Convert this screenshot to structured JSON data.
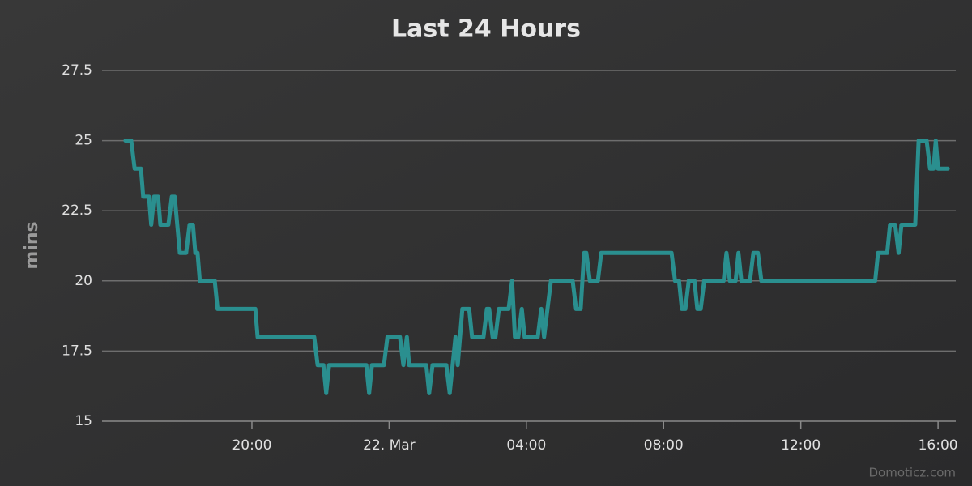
{
  "chart_data": {
    "type": "line",
    "title": "Last 24 Hours",
    "ylabel": "mins",
    "credit": "Domoticz.com",
    "x": [
      "21. Mar 16:19",
      "21. Mar 16:29",
      "21. Mar 16:35",
      "21. Mar 16:46",
      "21. Mar 16:50",
      "21. Mar 17:00",
      "21. Mar 17:04",
      "21. Mar 17:09",
      "21. Mar 17:16",
      "21. Mar 17:20",
      "21. Mar 17:34",
      "21. Mar 17:40",
      "21. Mar 17:45",
      "21. Mar 17:54",
      "21. Mar 18:05",
      "21. Mar 18:11",
      "21. Mar 18:17",
      "21. Mar 18:21",
      "21. Mar 18:25",
      "21. Mar 18:29",
      "21. Mar 18:55",
      "21. Mar 19:00",
      "21. Mar 20:06",
      "21. Mar 20:10",
      "21. Mar 21:49",
      "21. Mar 21:55",
      "21. Mar 22:05",
      "21. Mar 22:10",
      "21. Mar 22:15",
      "21. Mar 23:20",
      "21. Mar 23:25",
      "21. Mar 23:30",
      "21. Mar 23:51",
      "21. Mar 23:57",
      "22. Mar 00:19",
      "22. Mar 00:25",
      "22. Mar 00:31",
      "22. Mar 00:35",
      "22. Mar 01:05",
      "22. Mar 01:10",
      "22. Mar 01:16",
      "22. Mar 01:40",
      "22. Mar 01:46",
      "22. Mar 01:51",
      "22. Mar 01:56",
      "22. Mar 02:00",
      "22. Mar 02:08",
      "22. Mar 02:20",
      "22. Mar 02:25",
      "22. Mar 02:45",
      "22. Mar 02:51",
      "22. Mar 02:55",
      "22. Mar 03:01",
      "22. Mar 03:06",
      "22. Mar 03:12",
      "22. Mar 03:29",
      "22. Mar 03:35",
      "22. Mar 03:40",
      "22. Mar 03:46",
      "22. Mar 03:52",
      "22. Mar 03:57",
      "22. Mar 04:20",
      "22. Mar 04:26",
      "22. Mar 04:31",
      "22. Mar 04:37",
      "22. Mar 04:43",
      "22. Mar 05:21",
      "22. Mar 05:27",
      "22. Mar 05:35",
      "22. Mar 05:41",
      "22. Mar 05:45",
      "22. Mar 05:51",
      "22. Mar 06:05",
      "22. Mar 06:11",
      "22. Mar 08:14",
      "22. Mar 08:20",
      "22. Mar 08:27",
      "22. Mar 08:32",
      "22. Mar 08:38",
      "22. Mar 08:44",
      "22. Mar 08:54",
      "22. Mar 08:59",
      "22. Mar 09:05",
      "22. Mar 09:11",
      "22. Mar 09:45",
      "22. Mar 09:50",
      "22. Mar 09:56",
      "22. Mar 10:06",
      "22. Mar 10:11",
      "22. Mar 10:16",
      "22. Mar 10:31",
      "22. Mar 10:37",
      "22. Mar 10:45",
      "22. Mar 10:51",
      "22. Mar 14:10",
      "22. Mar 14:15",
      "22. Mar 14:31",
      "22. Mar 14:36",
      "22. Mar 14:45",
      "22. Mar 14:51",
      "22. Mar 14:56",
      "22. Mar 15:20",
      "22. Mar 15:26",
      "22. Mar 15:40",
      "22. Mar 15:46",
      "22. Mar 15:52",
      "22. Mar 15:56",
      "22. Mar 16:00",
      "22. Mar 16:17"
    ],
    "series": [
      {
        "name": "mins",
        "color": "#2a8f8f",
        "values": [
          25,
          25,
          24,
          24,
          23,
          23,
          22,
          23,
          23,
          22,
          22,
          23,
          23,
          21,
          21,
          22,
          22,
          21,
          21,
          20,
          20,
          19,
          19,
          18,
          18,
          17,
          17,
          16,
          17,
          17,
          16,
          17,
          17,
          18,
          18,
          17,
          18,
          17,
          17,
          16,
          17,
          17,
          16,
          17,
          18,
          17,
          19,
          19,
          18,
          18,
          19,
          19,
          18,
          18,
          19,
          19,
          20,
          18,
          18,
          19,
          18,
          18,
          19,
          18,
          19,
          20,
          20,
          19,
          19,
          21,
          21,
          20,
          20,
          21,
          21,
          20,
          20,
          19,
          19,
          20,
          20,
          19,
          19,
          20,
          20,
          21,
          20,
          20,
          21,
          20,
          20,
          21,
          21,
          20,
          20,
          21,
          21,
          22,
          22,
          21,
          22,
          22,
          25,
          25,
          24,
          24,
          25,
          24,
          24
        ]
      }
    ],
    "xlim": [
      "21. Mar 15:38",
      "22. Mar 16:31"
    ],
    "xticks": [
      {
        "value": "21. Mar 20:00",
        "label": "20:00"
      },
      {
        "value": "22. Mar 00:00",
        "label": "22. Mar"
      },
      {
        "value": "22. Mar 04:00",
        "label": "04:00"
      },
      {
        "value": "22. Mar 08:00",
        "label": "08:00"
      },
      {
        "value": "22. Mar 12:00",
        "label": "12:00"
      },
      {
        "value": "22. Mar 16:00",
        "label": "16:00"
      }
    ],
    "ylim": [
      15,
      27.5
    ],
    "yticks": [
      15,
      17.5,
      20,
      22.5,
      25,
      27.5
    ],
    "grid": true
  }
}
